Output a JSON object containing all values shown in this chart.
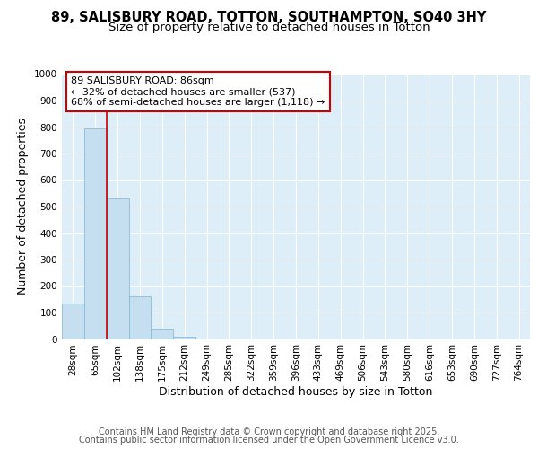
{
  "title_line1": "89, SALISBURY ROAD, TOTTON, SOUTHAMPTON, SO40 3HY",
  "title_line2": "Size of property relative to detached houses in Totton",
  "xlabel": "Distribution of detached houses by size in Totton",
  "ylabel": "Number of detached properties",
  "cat_labels": [
    "28sqm",
    "65sqm",
    "102sqm",
    "138sqm",
    "175sqm",
    "212sqm",
    "249sqm",
    "285sqm",
    "322sqm",
    "359sqm",
    "396sqm",
    "433sqm",
    "469sqm",
    "506sqm",
    "543sqm",
    "580sqm",
    "616sqm",
    "653sqm",
    "690sqm",
    "727sqm",
    "764sqm"
  ],
  "values": [
    135,
    795,
    530,
    162,
    38,
    8,
    0,
    0,
    0,
    0,
    0,
    0,
    0,
    0,
    0,
    0,
    0,
    0,
    0,
    0,
    0
  ],
  "bar_color": "#c5dff0",
  "bar_edge_color": "#8bbbd8",
  "ylim": [
    0,
    1000
  ],
  "yticks": [
    0,
    100,
    200,
    300,
    400,
    500,
    600,
    700,
    800,
    900,
    1000
  ],
  "vline_x": 1.5,
  "vline_color": "#cc0000",
  "annotation_text_line1": "89 SALISBURY ROAD: 86sqm",
  "annotation_text_line2": "← 32% of detached houses are smaller (537)",
  "annotation_text_line3": "68% of semi-detached houses are larger (1,118) →",
  "annotation_box_color": "#cc0000",
  "annotation_box_bg": "#ffffff",
  "footer_line1": "Contains HM Land Registry data © Crown copyright and database right 2025.",
  "footer_line2": "Contains public sector information licensed under the Open Government Licence v3.0.",
  "bg_color": "#ddeaf5",
  "plot_bg_color": "#ddeef8",
  "grid_color": "#ffffff",
  "title_fontsize": 10.5,
  "subtitle_fontsize": 9.5,
  "axis_label_fontsize": 9,
  "tick_fontsize": 7.5,
  "annotation_fontsize": 8,
  "footer_fontsize": 7
}
